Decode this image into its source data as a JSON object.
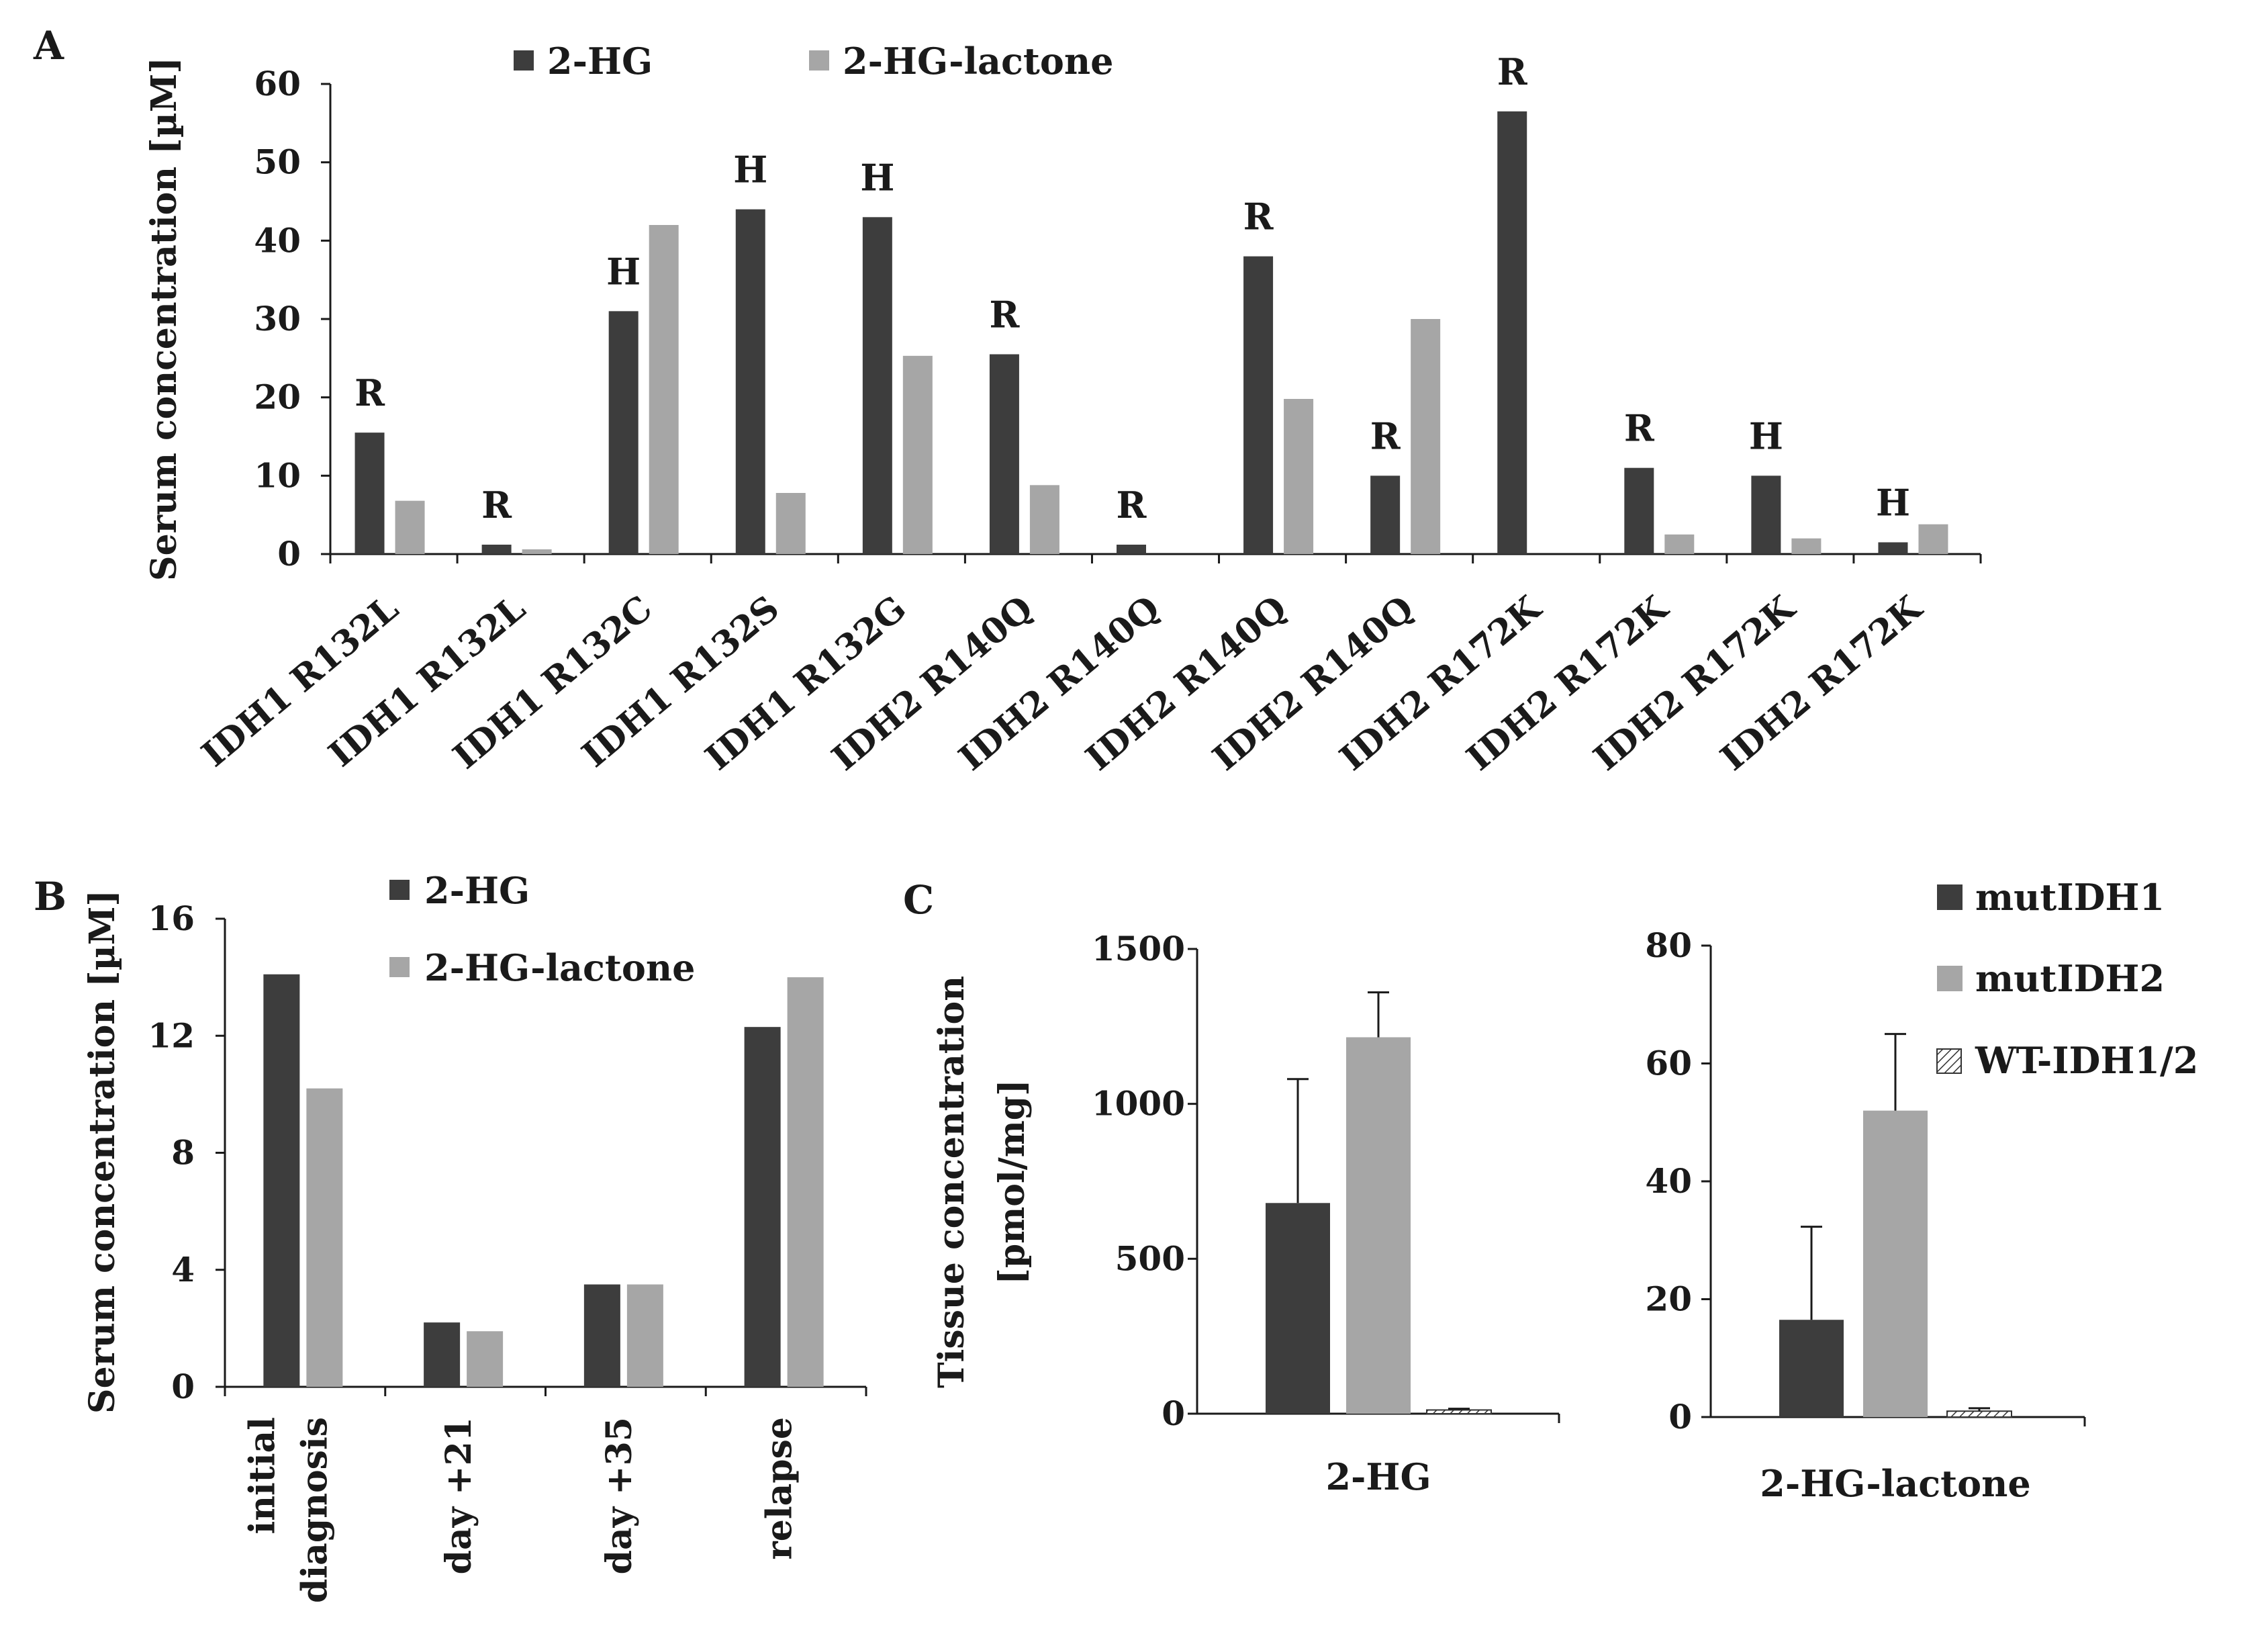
{
  "panels": {
    "a": "A",
    "b": "B",
    "c": "C"
  },
  "colors": {
    "dark": "#3d3d3d",
    "light": "#a6a6a6",
    "hatch": "#ffffff"
  },
  "chart_data": [
    {
      "id": "A",
      "type": "bar",
      "ylabel": "Serum concentration [µM]",
      "ylim": [
        0,
        60
      ],
      "yticks": [
        0,
        10,
        20,
        30,
        40,
        50,
        60
      ],
      "categories": [
        "IDH1 R132L",
        "IDH1 R132L",
        "IDH1 R132C",
        "IDH1 R132S",
        "IDH1 R132G",
        "IDH2 R140Q",
        "IDH2 R140Q",
        "IDH2 R140Q",
        "IDH2 R140Q",
        "IDH2 R172K",
        "IDH2 R172K",
        "IDH2 R172K",
        "IDH2 R172K"
      ],
      "annotations": [
        "R",
        "R",
        "H",
        "H",
        "H",
        "R",
        "R",
        "R",
        "R",
        "R",
        "R",
        "H",
        "H"
      ],
      "series": [
        {
          "name": "2-HG",
          "color": "#3d3d3d",
          "values": [
            15.5,
            1.2,
            31,
            44,
            43,
            25.5,
            1.2,
            38,
            10,
            56.5,
            11,
            10,
            1.5
          ]
        },
        {
          "name": "2-HG-lactone",
          "color": "#a6a6a6",
          "values": [
            6.8,
            0.6,
            42,
            7.8,
            25.3,
            8.8,
            0,
            19.8,
            30,
            0,
            2.5,
            2,
            3.8
          ]
        }
      ],
      "legend": [
        "2-HG",
        "2-HG-lactone"
      ]
    },
    {
      "id": "B",
      "type": "bar",
      "ylabel": "Serum concentration [µM]",
      "ylim": [
        0,
        16
      ],
      "yticks": [
        0,
        4,
        8,
        12,
        16
      ],
      "categories": [
        [
          "initial",
          "diagnosis"
        ],
        [
          "day +21"
        ],
        [
          "day +35"
        ],
        [
          "relapse"
        ]
      ],
      "series": [
        {
          "name": "2-HG",
          "color": "#3d3d3d",
          "values": [
            14.1,
            2.2,
            3.5,
            12.3
          ]
        },
        {
          "name": "2-HG-lactone",
          "color": "#a6a6a6",
          "values": [
            10.2,
            1.9,
            3.5,
            14
          ]
        }
      ],
      "legend": [
        "2-HG",
        "2-HG-lactone"
      ]
    },
    {
      "id": "C1",
      "type": "bar",
      "ylabel": [
        "Tissue concentration",
        "[pmol/mg]"
      ],
      "ylim": [
        0,
        1500
      ],
      "yticks": [
        0,
        500,
        1000,
        1500
      ],
      "group_label": "2-HG",
      "series": [
        {
          "name": "mutIDH1",
          "value": 680,
          "error": 400
        },
        {
          "name": "mutIDH2",
          "value": 1215,
          "error": 145
        },
        {
          "name": "WT-IDH1/2",
          "value": 12,
          "error": 4
        }
      ]
    },
    {
      "id": "C2",
      "type": "bar",
      "ylim": [
        0,
        80
      ],
      "yticks": [
        0,
        20,
        40,
        60,
        80
      ],
      "group_label": "2-HG-lactone",
      "series": [
        {
          "name": "mutIDH1",
          "value": 16.5,
          "error": 15.8
        },
        {
          "name": "mutIDH2",
          "value": 52,
          "error": 13
        },
        {
          "name": "WT-IDH1/2",
          "value": 1,
          "error": 0.5
        }
      ],
      "legend": [
        "mutIDH1",
        "mutIDH2",
        "WT-IDH1/2"
      ]
    }
  ]
}
